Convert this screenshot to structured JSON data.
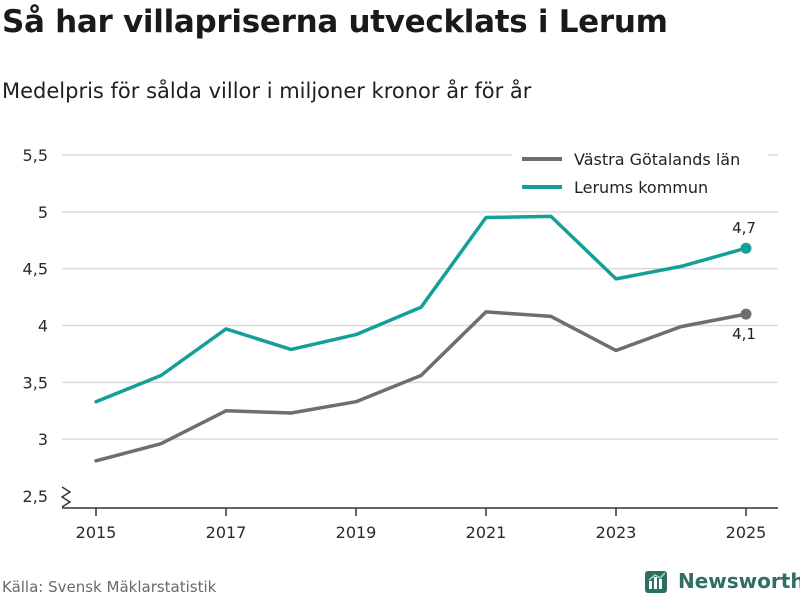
{
  "header": {
    "title": "Så har villapriserna utvecklats i Lerum",
    "subtitle": "Medelpris för sålda villor i miljoner kronor år för år"
  },
  "footer": {
    "source": "Källa: Svensk Mäklarstatistik",
    "brand": "Newsworthy"
  },
  "colors": {
    "region": "#6e6d72",
    "kommun": "#14a097",
    "grid": "#d9d9d9",
    "axis": "#333333",
    "brand": "#2f6e63"
  },
  "chart_data": {
    "type": "line",
    "title": "Så har villapriserna utvecklats i Lerum",
    "subtitle": "Medelpris för sålda villor i miljoner kronor år för år",
    "xlabel": "",
    "ylabel": "",
    "x": [
      2015,
      2016,
      2017,
      2018,
      2019,
      2020,
      2021,
      2022,
      2023,
      2024,
      2025
    ],
    "x_ticks": [
      2015,
      2017,
      2019,
      2021,
      2023,
      2025
    ],
    "y_ticks": [
      2.5,
      3,
      3.5,
      4,
      4.5,
      5,
      5.5
    ],
    "y_tick_labels": [
      "2,5",
      "3",
      "3,5",
      "4",
      "4,5",
      "5",
      "5,5"
    ],
    "ylim": [
      2.5,
      5.5
    ],
    "axis_break": true,
    "legend_position": "top-right",
    "series": [
      {
        "name": "Västra Götalands län",
        "color": "#6e6d72",
        "values": [
          2.81,
          2.96,
          3.25,
          3.23,
          3.33,
          3.56,
          4.12,
          4.08,
          3.78,
          3.99,
          4.1
        ],
        "end_label": "4,1",
        "end_label_position": "below"
      },
      {
        "name": "Lerums kommun",
        "color": "#14a097",
        "values": [
          3.33,
          3.56,
          3.97,
          3.79,
          3.92,
          4.16,
          4.95,
          4.96,
          4.41,
          4.52,
          4.68
        ],
        "end_label": "4,7",
        "end_label_position": "above"
      }
    ]
  }
}
